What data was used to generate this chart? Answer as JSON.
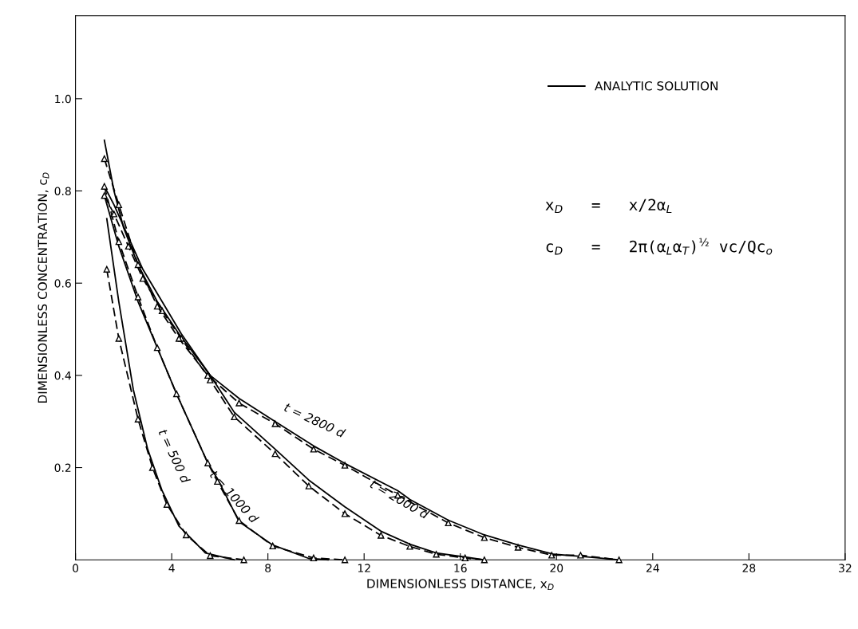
{
  "chart_data": {
    "type": "line",
    "xlabel": "DIMENSIONLESS DISTANCE, x$_{D}$",
    "ylabel": "DIMENSIONLESS CONCENTRATION, c$_{D}$",
    "xlim": [
      0,
      32
    ],
    "xticks": [
      0,
      4,
      8,
      12,
      16,
      20,
      24,
      28,
      32
    ],
    "ylim": [
      0,
      1.18
    ],
    "yticks": [
      0.2,
      0.4,
      0.6,
      0.8,
      {
        "value": 1.0,
        "label": "1.0"
      }
    ],
    "grid": false,
    "legend": "top right",
    "series": [
      {
        "name": "ANALYTIC SOLUTION",
        "color": "#000000",
        "line_style": "solid",
        "marker": "none",
        "x": [
          1.2,
          1.6,
          2.0,
          2.6,
          3.4,
          4.3,
          5.6,
          6.8,
          8.3,
          9.9,
          11.2,
          13.4,
          13.9,
          15.5,
          17.0,
          18.4,
          19.9,
          21.1,
          22.6
        ],
        "values": [
          0.91,
          0.8,
          0.72,
          0.64,
          0.56,
          0.49,
          0.4,
          0.35,
          0.3,
          0.247,
          0.209,
          0.15,
          0.131,
          0.086,
          0.054,
          0.032,
          0.012,
          0.007,
          0.0
        ]
      },
      {
        "color": "#000000",
        "line_style": "dashed",
        "marker": "triangle",
        "x": [
          1.2,
          1.8,
          2.6,
          3.4,
          4.3,
          5.5,
          6.8,
          8.3,
          9.9,
          11.2,
          13.4,
          15.5,
          17.0,
          18.4,
          19.8,
          21.0,
          22.6
        ],
        "values": [
          0.87,
          0.77,
          0.64,
          0.55,
          0.48,
          0.4,
          0.34,
          0.295,
          0.24,
          0.205,
          0.14,
          0.08,
          0.048,
          0.027,
          0.01,
          0.01,
          0.0
        ]
      },
      {
        "color": "#000000",
        "line_style": "solid",
        "marker": "none",
        "x": [
          1.2,
          1.6,
          2.2,
          2.8,
          3.6,
          4.4,
          5.6,
          6.6,
          8.3,
          9.7,
          11.2,
          12.7,
          13.9,
          15.0,
          16.2,
          17.0
        ],
        "values": [
          0.81,
          0.77,
          0.7,
          0.63,
          0.56,
          0.49,
          0.4,
          0.32,
          0.24,
          0.173,
          0.115,
          0.062,
          0.034,
          0.015,
          0.006,
          0.0
        ]
      },
      {
        "color": "#000000",
        "line_style": "dashed",
        "marker": "triangle",
        "x": [
          1.2,
          1.6,
          2.2,
          2.8,
          3.6,
          4.4,
          5.6,
          6.6,
          8.3,
          9.7,
          11.2,
          12.7,
          13.9,
          15.0,
          16.2,
          17.0
        ],
        "values": [
          0.79,
          0.75,
          0.68,
          0.61,
          0.54,
          0.48,
          0.39,
          0.31,
          0.23,
          0.16,
          0.1,
          0.053,
          0.029,
          0.012,
          0.004,
          0.0
        ]
      },
      {
        "color": "#000000",
        "line_style": "solid",
        "marker": "none",
        "x": [
          1.2,
          1.8,
          2.6,
          3.4,
          4.2,
          5.5,
          5.9,
          6.8,
          8.2,
          9.7,
          10.5
        ],
        "values": [
          0.79,
          0.68,
          0.56,
          0.46,
          0.36,
          0.21,
          0.176,
          0.083,
          0.032,
          0.003,
          0.0
        ]
      },
      {
        "color": "#000000",
        "line_style": "dashed",
        "marker": "triangle",
        "x": [
          1.2,
          1.8,
          2.6,
          3.4,
          4.2,
          5.5,
          5.9,
          6.8,
          8.2,
          9.9,
          11.2
        ],
        "values": [
          0.81,
          0.69,
          0.57,
          0.46,
          0.36,
          0.21,
          0.17,
          0.085,
          0.03,
          0.004,
          0.0
        ]
      },
      {
        "color": "#000000",
        "line_style": "solid",
        "marker": "none",
        "x": [
          1.3,
          1.8,
          2.4,
          3.0,
          3.6,
          4.3,
          5.4,
          6.6
        ],
        "values": [
          0.74,
          0.56,
          0.37,
          0.24,
          0.15,
          0.073,
          0.015,
          0.0
        ]
      },
      {
        "color": "#000000",
        "line_style": "dashed",
        "marker": "triangle",
        "x": [
          1.3,
          1.8,
          2.6,
          3.2,
          3.8,
          4.6,
          5.6,
          7.0
        ],
        "values": [
          0.63,
          0.48,
          0.305,
          0.2,
          0.12,
          0.054,
          0.009,
          0.0
        ]
      }
    ],
    "annotations": [
      "t = 500 d",
      "t = 1000 d",
      "t = 2000 d",
      "t = 2800 d",
      "x$_{D}$   =   x/2α$_{L}$",
      "c$_{D}$   =   2π(α$_{L}$α$_{T}$)$^{½}$ vc/Qc$_{o}$"
    ]
  }
}
